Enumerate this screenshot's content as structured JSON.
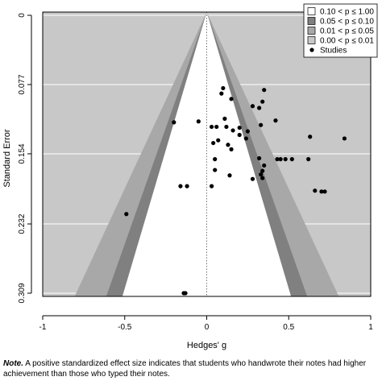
{
  "chart_data": {
    "type": "scatter",
    "xlabel": "Hedges' g",
    "ylabel": "Standard Error",
    "x_ticks": [
      "-1",
      "-0.5",
      "0",
      "0.5",
      "1"
    ],
    "y_ticks": [
      "0",
      "0.077",
      "0.154",
      "0.232",
      "0.309"
    ],
    "xlim": [
      -1,
      1
    ],
    "ylim": [
      0,
      0.309
    ],
    "y_reversed": true,
    "funnel_center": 0,
    "legend_position": "top-right",
    "legend": [
      {
        "label": "0.10 < p ≤ 1.00",
        "color": "#ffffff"
      },
      {
        "label": "0.05 < p ≤ 0.10",
        "color": "#808080"
      },
      {
        "label": "0.01 < p ≤ 0.05",
        "color": "#a8a8a8"
      },
      {
        "label": "0.00 < p ≤ 0.01",
        "color": "#c8c8c8"
      },
      {
        "label": "Studies",
        "color": "#000000",
        "marker": "dot"
      }
    ],
    "colors": {
      "background": "#c8c8c8",
      "gridline": "#ffffff",
      "band_p10": "#ffffff",
      "band_p05": "#808080",
      "band_p01": "#a8a8a8",
      "point": "#000000"
    },
    "points": [
      {
        "x": 0.1,
        "y": 0.081
      },
      {
        "x": 0.09,
        "y": 0.087
      },
      {
        "x": 0.15,
        "y": 0.093
      },
      {
        "x": 0.35,
        "y": 0.083
      },
      {
        "x": 0.34,
        "y": 0.096
      },
      {
        "x": 0.28,
        "y": 0.101
      },
      {
        "x": 0.32,
        "y": 0.103
      },
      {
        "x": -0.05,
        "y": 0.118
      },
      {
        "x": -0.2,
        "y": 0.119
      },
      {
        "x": 0.11,
        "y": 0.115
      },
      {
        "x": 0.03,
        "y": 0.124
      },
      {
        "x": 0.06,
        "y": 0.124
      },
      {
        "x": 0.12,
        "y": 0.124
      },
      {
        "x": 0.2,
        "y": 0.125
      },
      {
        "x": 0.16,
        "y": 0.128
      },
      {
        "x": 0.25,
        "y": 0.129
      },
      {
        "x": 0.33,
        "y": 0.122
      },
      {
        "x": 0.42,
        "y": 0.117
      },
      {
        "x": 0.2,
        "y": 0.133
      },
      {
        "x": 0.24,
        "y": 0.137
      },
      {
        "x": 0.07,
        "y": 0.139
      },
      {
        "x": 0.13,
        "y": 0.144
      },
      {
        "x": 0.04,
        "y": 0.142
      },
      {
        "x": 0.63,
        "y": 0.135
      },
      {
        "x": 0.84,
        "y": 0.137
      },
      {
        "x": 0.15,
        "y": 0.149
      },
      {
        "x": 0.05,
        "y": 0.16
      },
      {
        "x": 0.32,
        "y": 0.159
      },
      {
        "x": 0.43,
        "y": 0.16
      },
      {
        "x": 0.45,
        "y": 0.16
      },
      {
        "x": 0.48,
        "y": 0.16
      },
      {
        "x": 0.52,
        "y": 0.16
      },
      {
        "x": 0.62,
        "y": 0.16
      },
      {
        "x": 0.35,
        "y": 0.167
      },
      {
        "x": 0.05,
        "y": 0.172
      },
      {
        "x": 0.34,
        "y": 0.173
      },
      {
        "x": 0.33,
        "y": 0.177
      },
      {
        "x": 0.14,
        "y": 0.178
      },
      {
        "x": 0.34,
        "y": 0.181
      },
      {
        "x": 0.28,
        "y": 0.182
      },
      {
        "x": -0.16,
        "y": 0.19
      },
      {
        "x": -0.12,
        "y": 0.19
      },
      {
        "x": 0.03,
        "y": 0.19
      },
      {
        "x": 0.66,
        "y": 0.195
      },
      {
        "x": 0.72,
        "y": 0.196
      },
      {
        "x": 0.7,
        "y": 0.196
      },
      {
        "x": -0.49,
        "y": 0.221
      },
      {
        "x": -0.14,
        "y": 0.309
      },
      {
        "x": -0.13,
        "y": 0.309
      }
    ]
  },
  "note": {
    "lead": "Note.",
    "text": " A positive standardized effect size indicates that students who handwrote their notes had higher achievement than those who typed their notes."
  }
}
